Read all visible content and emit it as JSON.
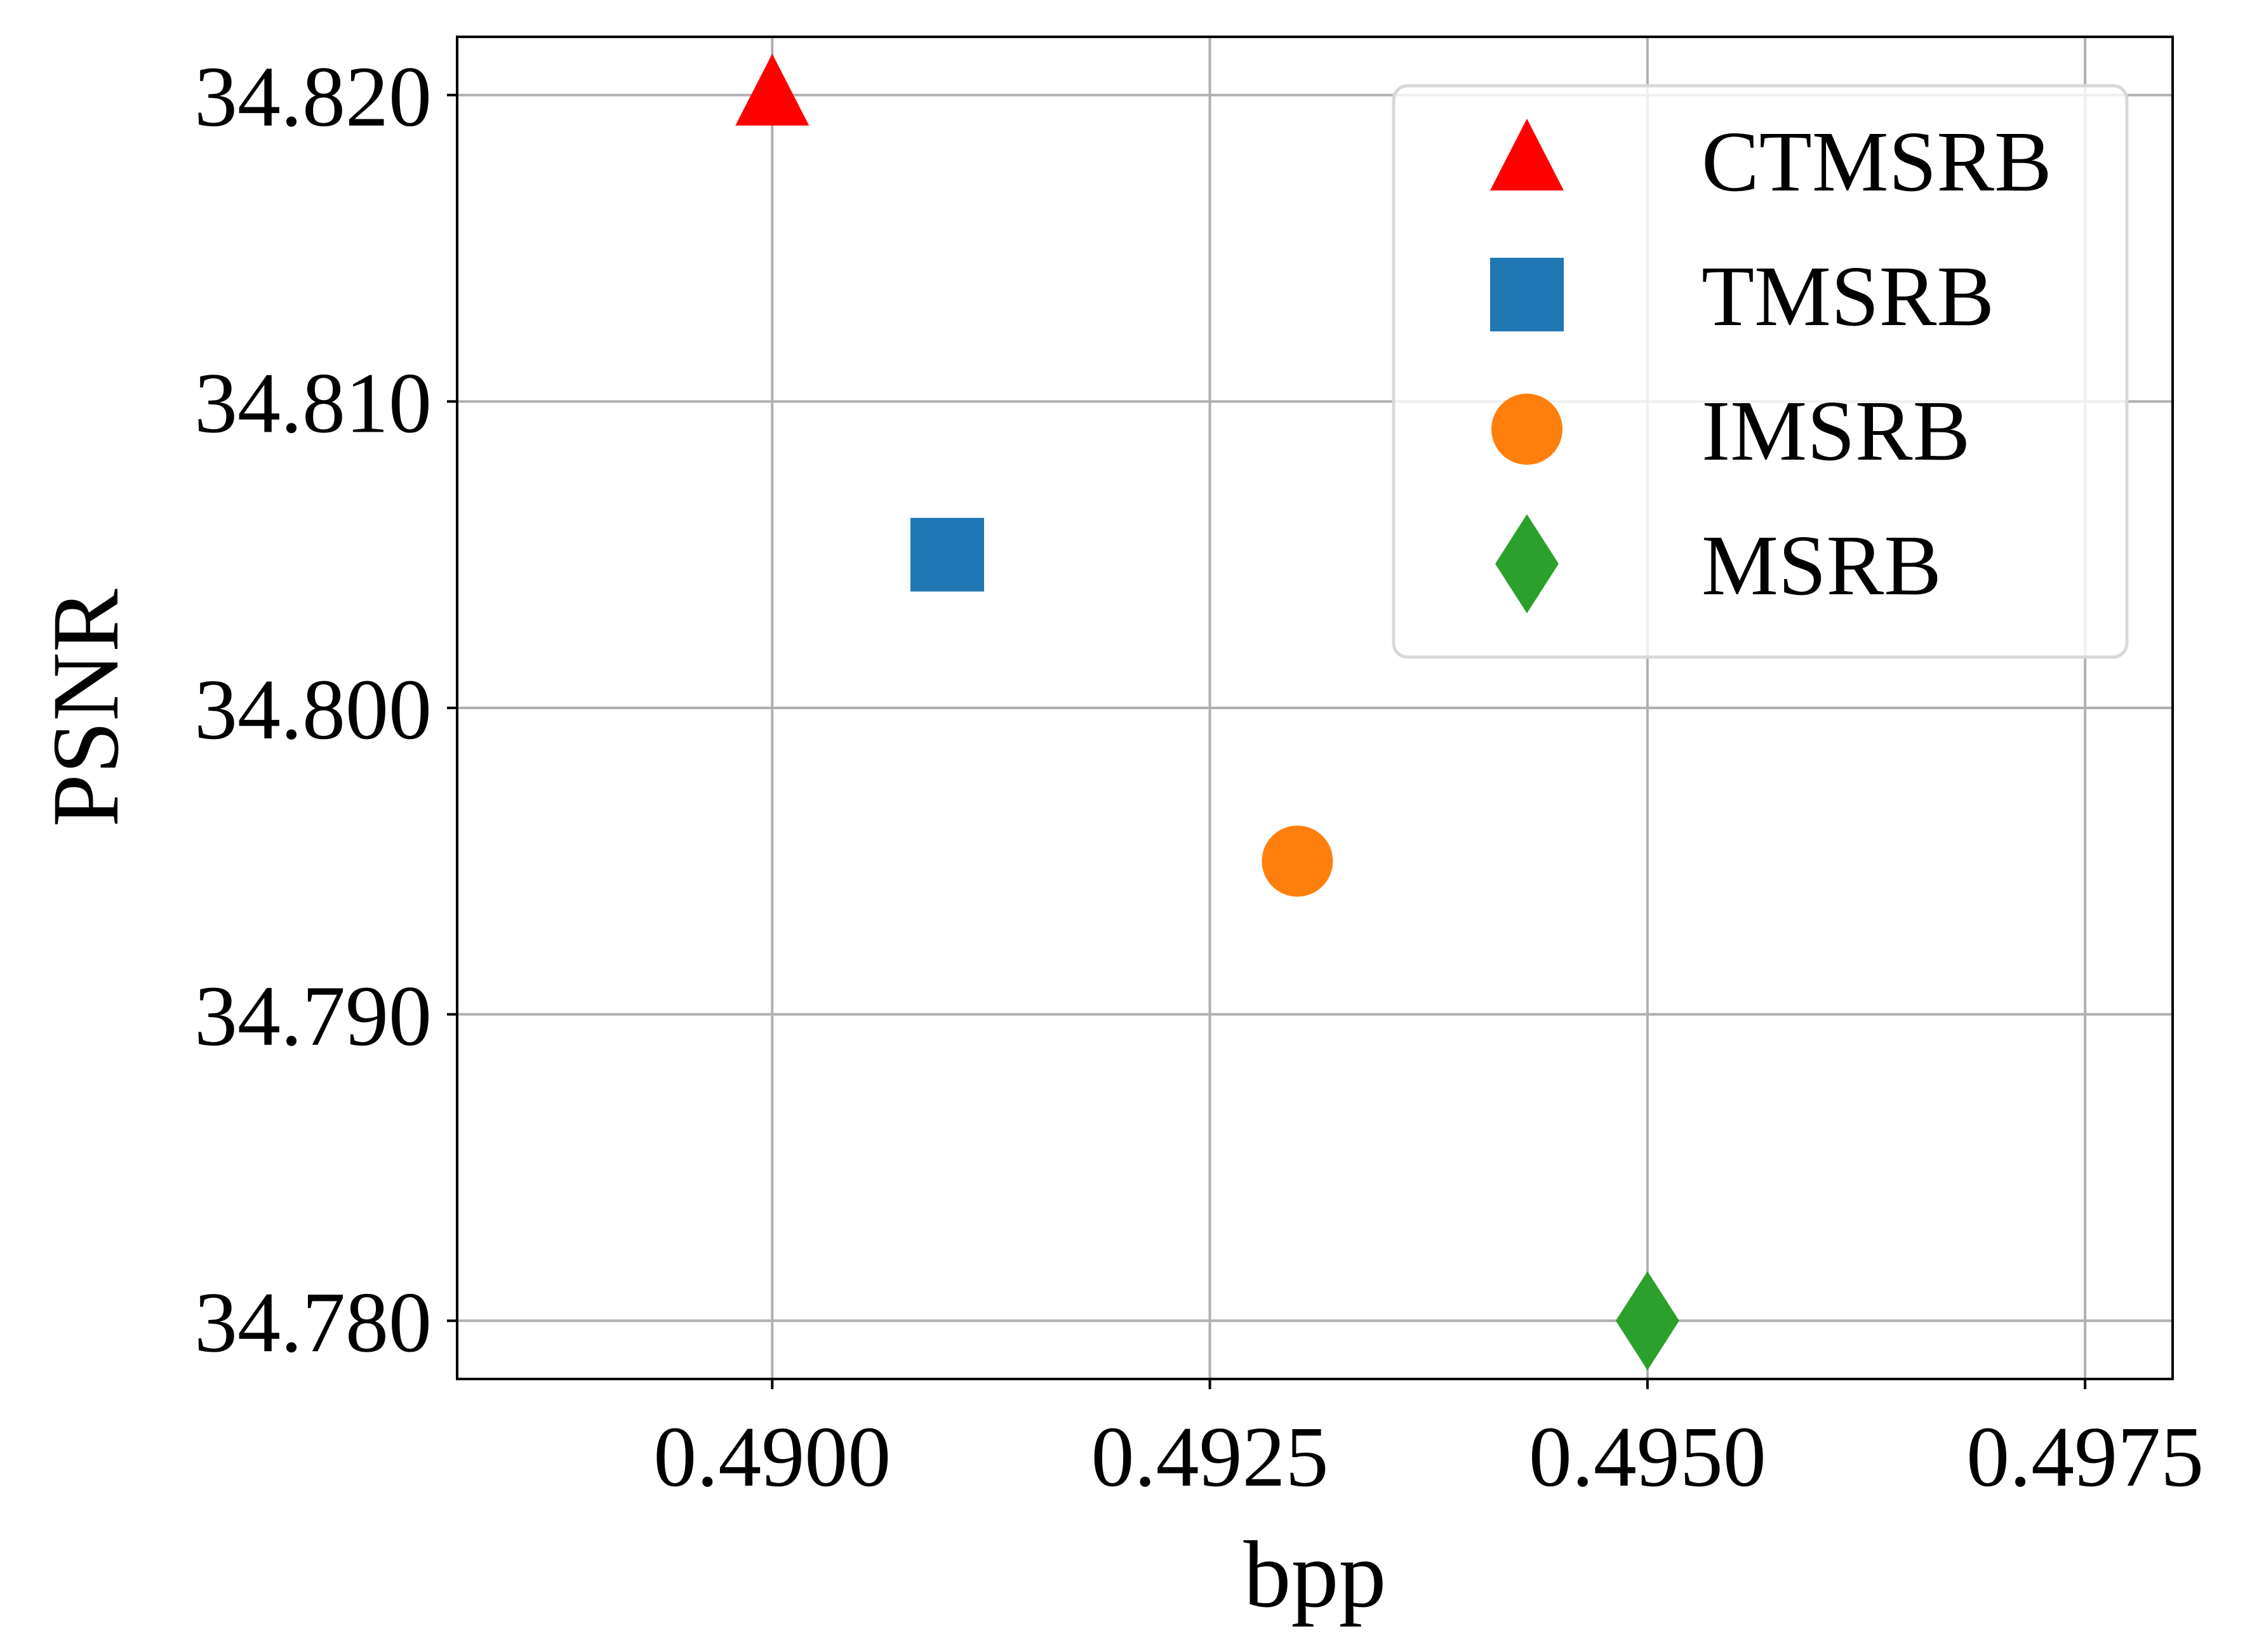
{
  "chart_data": {
    "type": "scatter",
    "title": "",
    "xlabel": "bpp",
    "ylabel": "PSNR",
    "xlim": [
      0.4882,
      0.498
    ],
    "ylim": [
      34.7781,
      34.8219
    ],
    "grid": true,
    "legend_position": "top-right",
    "x_ticks": [
      {
        "value": 0.49,
        "label": "0.4900"
      },
      {
        "value": 0.4925,
        "label": "0.4925"
      },
      {
        "value": 0.495,
        "label": "0.4950"
      },
      {
        "value": 0.4975,
        "label": "0.4975"
      }
    ],
    "y_ticks": [
      {
        "value": 34.78,
        "label": "34.780"
      },
      {
        "value": 34.79,
        "label": "34.790"
      },
      {
        "value": 34.8,
        "label": "34.800"
      },
      {
        "value": 34.81,
        "label": "34.810"
      },
      {
        "value": 34.82,
        "label": "34.820"
      }
    ],
    "series": [
      {
        "name": "CTMSRB",
        "marker": "triangle",
        "color": "#ff0000",
        "x": [
          0.49
        ],
        "y": [
          34.82
        ]
      },
      {
        "name": "TMSRB",
        "marker": "square",
        "color": "#1f77b4",
        "x": [
          0.491
        ],
        "y": [
          34.805
        ]
      },
      {
        "name": "IMSRB",
        "marker": "circle",
        "color": "#ff7f0e",
        "x": [
          0.493
        ],
        "y": [
          34.795
        ]
      },
      {
        "name": "MSRB",
        "marker": "diamond",
        "color": "#2ca02c",
        "x": [
          0.495
        ],
        "y": [
          34.78
        ]
      }
    ]
  }
}
